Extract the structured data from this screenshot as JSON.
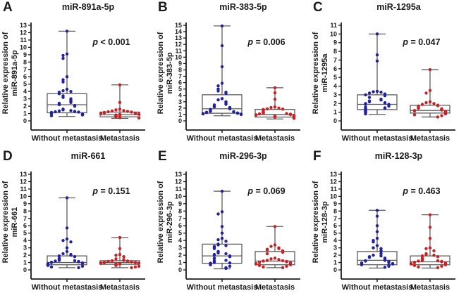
{
  "figure": {
    "background": "#ffffff"
  },
  "colors": {
    "without_metastasis": "#22229B",
    "metastasis": "#C92125",
    "box_stroke": "#5E5E5E",
    "axis": "#1B1B1B",
    "text": "#1A1A1A"
  },
  "x_categories": [
    "Without metastasis",
    "Metastasis"
  ],
  "chart_data": [
    {
      "type": "box",
      "panel": "A",
      "title": "miR-891a-5p",
      "p_label": "p < 0.001",
      "ylabel_line1": "Relative expression of",
      "ylabel_line2": "miR-891a-5p",
      "ylim": [
        0,
        13
      ],
      "ytick_step": 1,
      "grid": false,
      "groups": [
        {
          "label": "Without metastasis",
          "color_key": "without_metastasis",
          "box": {
            "whisker_low": 0.6,
            "q1": 1.1,
            "median": 2.2,
            "q3": 3.7,
            "whisker_high": 12.2
          },
          "points": [
            12.2,
            9.1,
            8.9,
            8.5,
            6.0,
            5.6,
            5.3,
            4.3,
            4.1,
            4.0,
            3.9,
            3.7,
            3.4,
            3.2,
            3.0,
            2.8,
            2.7,
            2.5,
            2.4,
            2.3,
            2.2,
            2.1,
            2.0,
            1.6,
            1.5,
            1.4,
            1.35,
            1.3,
            1.25,
            1.2,
            1.15,
            1.1,
            1.0,
            0.95,
            0.9,
            0.85,
            0.8,
            0.7
          ]
        },
        {
          "label": "Metastasis",
          "color_key": "metastasis",
          "box": {
            "whisker_low": 0.35,
            "q1": 0.55,
            "median": 0.85,
            "q3": 1.2,
            "whisker_high": 4.9
          },
          "points": [
            4.9,
            2.5,
            1.6,
            1.5,
            1.4,
            1.35,
            1.3,
            1.25,
            1.2,
            1.15,
            1.1,
            1.05,
            1.0,
            1.0,
            0.95,
            0.9,
            0.9,
            0.85,
            0.8,
            0.8,
            0.75,
            0.7,
            0.65,
            0.6,
            0.55,
            0.5,
            0.45,
            0.4
          ]
        }
      ]
    },
    {
      "type": "box",
      "panel": "B",
      "title": "miR-383-5p",
      "p_label": "p = 0.006",
      "ylabel_line1": "Relative expression of",
      "ylabel_line2": "miR-383-5p",
      "ylim": [
        0,
        15
      ],
      "ytick_step": 1,
      "grid": false,
      "groups": [
        {
          "label": "Without metastasis",
          "color_key": "without_metastasis",
          "box": {
            "whisker_low": 0.8,
            "q1": 1.2,
            "median": 1.9,
            "q3": 4.1,
            "whisker_high": 14.9
          },
          "points": [
            14.9,
            11.8,
            8.5,
            5.9,
            5.5,
            5.0,
            4.7,
            4.5,
            4.3,
            3.5,
            3.3,
            3.0,
            2.8,
            2.6,
            2.5,
            2.3,
            2.2,
            2.1,
            2.0,
            1.9,
            1.8,
            1.7,
            1.6,
            1.5,
            1.45,
            1.4,
            1.35,
            1.3,
            1.25,
            1.2,
            1.15,
            1.1,
            1.05,
            1.0
          ]
        },
        {
          "label": "Metastasis",
          "color_key": "metastasis",
          "box": {
            "whisker_low": 0.3,
            "q1": 0.6,
            "median": 1.0,
            "q3": 1.8,
            "whisker_high": 5.2
          },
          "points": [
            5.2,
            4.4,
            3.4,
            2.2,
            2.1,
            2.0,
            1.9,
            1.85,
            1.8,
            1.6,
            1.5,
            1.4,
            1.3,
            1.25,
            1.2,
            1.15,
            1.1,
            1.05,
            1.0,
            0.95,
            0.9,
            0.85,
            0.8,
            0.75,
            0.7,
            0.65,
            0.6,
            0.5,
            0.45,
            0.4
          ]
        }
      ]
    },
    {
      "type": "box",
      "panel": "C",
      "title": "miR-1295a",
      "p_label": "p = 0.047",
      "ylabel_line1": "Relative expression of",
      "ylabel_line2": "miR-1295a",
      "ylim": [
        0,
        11
      ],
      "ytick_step": 1,
      "grid": false,
      "groups": [
        {
          "label": "Without metastasis",
          "color_key": "without_metastasis",
          "box": {
            "whisker_low": 0.75,
            "q1": 1.3,
            "median": 1.9,
            "q3": 3.0,
            "whisker_high": 10.0
          },
          "points": [
            10.0,
            7.6,
            6.9,
            3.4,
            3.35,
            3.3,
            3.2,
            3.1,
            3.0,
            2.9,
            2.7,
            2.5,
            2.4,
            2.3,
            2.2,
            2.1,
            2.05,
            2.0,
            1.95,
            1.9,
            1.8,
            1.7,
            1.6,
            1.5,
            1.45,
            1.4,
            1.3,
            1.2,
            1.1,
            1.05,
            1.0,
            0.9,
            0.8
          ]
        },
        {
          "label": "Metastasis",
          "color_key": "metastasis",
          "box": {
            "whisker_low": 0.45,
            "q1": 0.9,
            "median": 1.2,
            "q3": 1.8,
            "whisker_high": 5.9
          },
          "points": [
            5.9,
            3.5,
            3.2,
            2.2,
            2.1,
            2.0,
            1.9,
            1.8,
            1.75,
            1.7,
            1.6,
            1.5,
            1.45,
            1.4,
            1.35,
            1.3,
            1.25,
            1.2,
            1.15,
            1.1,
            1.05,
            1.0,
            0.95,
            0.9,
            0.85,
            0.8,
            0.7,
            0.6,
            0.45
          ]
        }
      ]
    },
    {
      "type": "box",
      "panel": "D",
      "title": "miR-661",
      "p_label": "p = 0.151",
      "ylabel_line1": "Relative expression of",
      "ylabel_line2": "miR-661",
      "ylim": [
        0,
        13
      ],
      "ytick_step": 1,
      "grid": false,
      "groups": [
        {
          "label": "Without metastasis",
          "color_key": "without_metastasis",
          "box": {
            "whisker_low": 0.3,
            "q1": 0.7,
            "median": 1.0,
            "q3": 1.9,
            "whisker_high": 9.8
          },
          "points": [
            9.8,
            5.7,
            4.2,
            4.0,
            3.8,
            3.0,
            2.5,
            2.2,
            2.1,
            2.0,
            1.9,
            1.8,
            1.6,
            1.5,
            1.4,
            1.3,
            1.25,
            1.2,
            1.15,
            1.1,
            1.05,
            1.0,
            0.95,
            0.9,
            0.85,
            0.8,
            0.75,
            0.7,
            0.65,
            0.6,
            0.5,
            0.4,
            0.3
          ]
        },
        {
          "label": "Metastasis",
          "color_key": "metastasis",
          "box": {
            "whisker_low": 0.3,
            "q1": 0.75,
            "median": 1.0,
            "q3": 1.25,
            "whisker_high": 4.4
          },
          "points": [
            4.4,
            2.9,
            2.1,
            2.0,
            1.8,
            1.5,
            1.4,
            1.3,
            1.25,
            1.2,
            1.15,
            1.1,
            1.05,
            1.0,
            1.0,
            0.95,
            0.9,
            0.9,
            0.85,
            0.8,
            0.8,
            0.75,
            0.7,
            0.65,
            0.6,
            0.5,
            0.4,
            0.3
          ]
        }
      ]
    },
    {
      "type": "box",
      "panel": "E",
      "title": "miR-296-3p",
      "p_label": "p = 0.069",
      "ylabel_line1": "Relative expression of",
      "ylabel_line2": "miR-296-3p",
      "ylim": [
        0,
        13
      ],
      "ytick_step": 1,
      "grid": false,
      "groups": [
        {
          "label": "Without metastasis",
          "color_key": "without_metastasis",
          "box": {
            "whisker_low": 0.15,
            "q1": 0.9,
            "median": 1.9,
            "q3": 3.5,
            "whisker_high": 10.7
          },
          "points": [
            10.7,
            7.9,
            7.6,
            5.9,
            5.0,
            4.3,
            4.1,
            3.9,
            3.5,
            3.4,
            3.3,
            3.2,
            3.0,
            2.9,
            2.5,
            2.3,
            2.2,
            2.1,
            2.0,
            1.9,
            1.8,
            1.6,
            1.5,
            1.3,
            1.2,
            1.1,
            1.0,
            0.95,
            0.9,
            0.8,
            0.7,
            0.5,
            0.3,
            0.2
          ]
        },
        {
          "label": "Metastasis",
          "color_key": "metastasis",
          "box": {
            "whisker_low": 0.3,
            "q1": 0.7,
            "median": 1.2,
            "q3": 2.5,
            "whisker_high": 5.9
          },
          "points": [
            5.9,
            3.4,
            3.2,
            3.0,
            2.9,
            2.8,
            2.7,
            2.6,
            2.5,
            2.4,
            2.2,
            1.6,
            1.5,
            1.4,
            1.3,
            1.25,
            1.2,
            1.15,
            1.1,
            1.05,
            1.0,
            0.95,
            0.9,
            0.85,
            0.8,
            0.7,
            0.6,
            0.5,
            0.4,
            0.3
          ]
        }
      ]
    },
    {
      "type": "box",
      "panel": "F",
      "title": "miR-128-3p",
      "p_label": "p = 0.463",
      "ylabel_line1": "Relative expression of",
      "ylabel_line2": "miR-128-3p",
      "ylim": [
        0,
        13
      ],
      "ytick_step": 1,
      "grid": false,
      "groups": [
        {
          "label": "Without metastasis",
          "color_key": "without_metastasis",
          "box": {
            "whisker_low": 0.25,
            "q1": 0.7,
            "median": 1.3,
            "q3": 2.5,
            "whisker_high": 8.1
          },
          "points": [
            8.1,
            7.3,
            6.0,
            5.2,
            4.3,
            4.0,
            3.8,
            3.3,
            3.0,
            2.9,
            2.6,
            2.5,
            2.2,
            2.0,
            1.9,
            1.8,
            1.7,
            1.6,
            1.5,
            1.4,
            1.3,
            1.25,
            1.2,
            1.15,
            1.1,
            1.0,
            0.95,
            0.9,
            0.85,
            0.8,
            0.7,
            0.6,
            0.5,
            0.35
          ]
        },
        {
          "label": "Metastasis",
          "color_key": "metastasis",
          "box": {
            "whisker_low": 0.25,
            "q1": 0.7,
            "median": 1.1,
            "q3": 1.9,
            "whisker_high": 7.5
          },
          "points": [
            7.5,
            5.8,
            4.3,
            3.0,
            2.9,
            2.6,
            2.2,
            2.1,
            2.0,
            1.9,
            1.8,
            1.6,
            1.5,
            1.4,
            1.3,
            1.25,
            1.2,
            1.15,
            1.1,
            1.05,
            1.0,
            0.95,
            0.9,
            0.85,
            0.8,
            0.7,
            0.6,
            0.5,
            0.4,
            0.3
          ]
        }
      ]
    }
  ]
}
